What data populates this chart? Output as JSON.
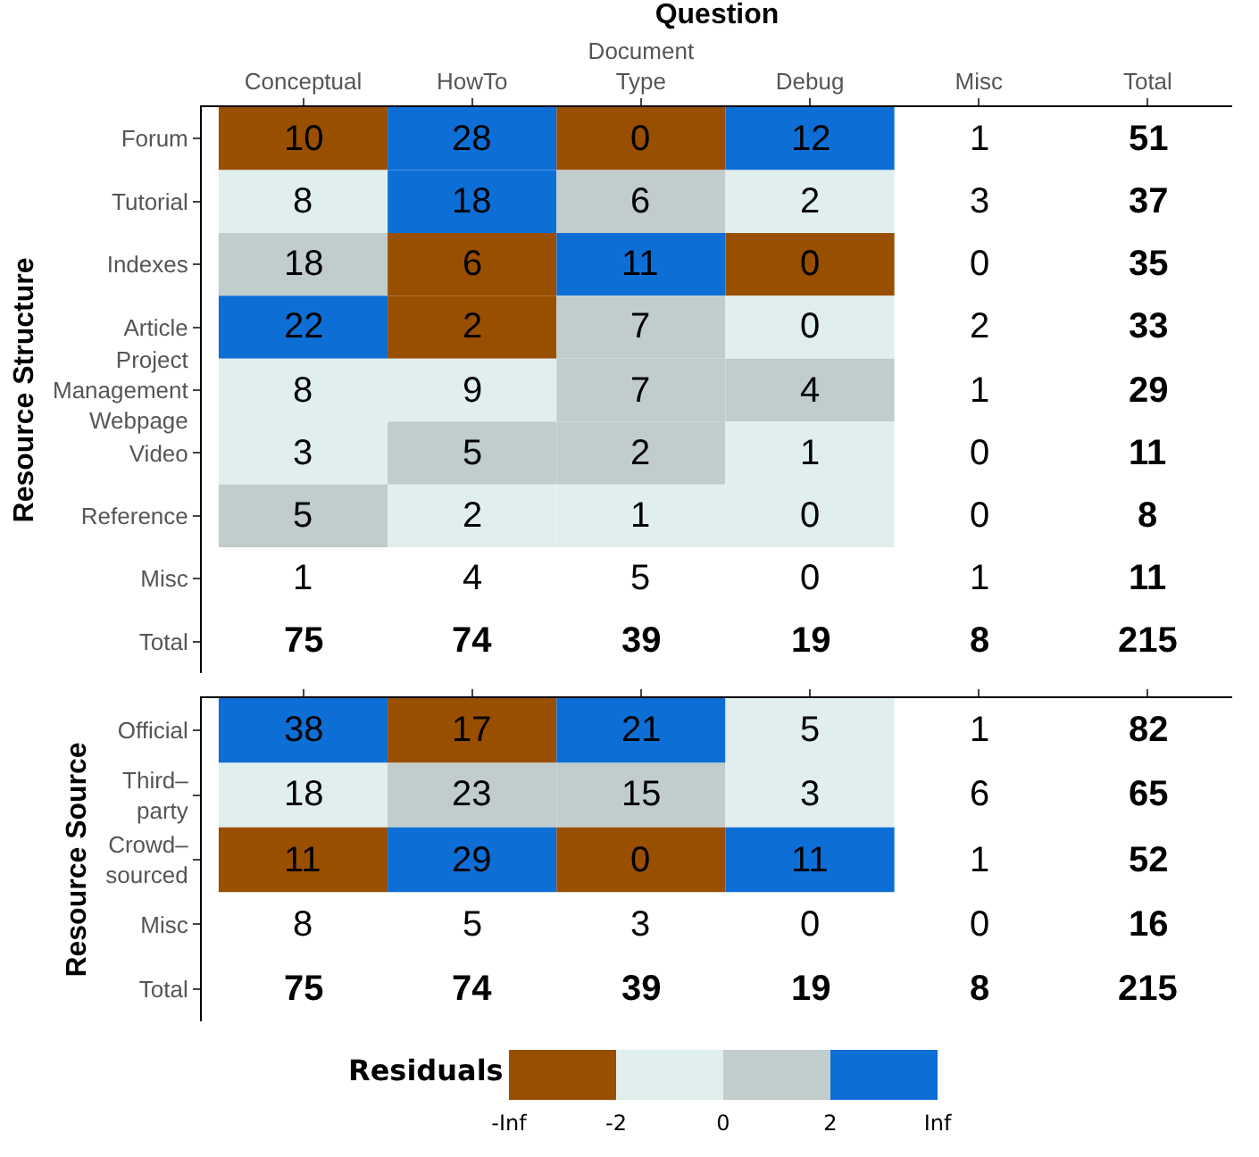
{
  "chart_data": [
    {
      "type": "heatmap",
      "xlabel": "Question",
      "ylabel": "Resource Structure",
      "data_labels": true,
      "categories": [
        "Conceptual",
        "HowTo",
        "Document Type",
        "Debug",
        "Misc",
        "Total"
      ],
      "y_categories": [
        "Forum",
        "Tutorial",
        "Indexes",
        "Article",
        "Project Management Webpage",
        "Video",
        "Reference",
        "Misc",
        "Total"
      ],
      "cells": [
        [
          10,
          28,
          0,
          12,
          1,
          51
        ],
        [
          8,
          18,
          6,
          2,
          3,
          37
        ],
        [
          18,
          6,
          11,
          0,
          0,
          35
        ],
        [
          22,
          2,
          7,
          0,
          2,
          33
        ],
        [
          8,
          9,
          7,
          4,
          1,
          29
        ],
        [
          3,
          5,
          2,
          1,
          0,
          11
        ],
        [
          5,
          2,
          1,
          0,
          0,
          8
        ],
        [
          1,
          4,
          5,
          0,
          1,
          11
        ],
        [
          75,
          74,
          39,
          19,
          8,
          215
        ]
      ],
      "colors": [
        [
          "#994f00",
          "#0d6ed6",
          "#994f00",
          "#0d6ed6",
          null,
          null
        ],
        [
          "#e1eeee",
          "#0d6ed6",
          "#c1cccc",
          "#e1eeee",
          null,
          null
        ],
        [
          "#c1cccc",
          "#994f00",
          "#0d6ed6",
          "#994f00",
          null,
          null
        ],
        [
          "#0d6ed6",
          "#994f00",
          "#c1cccc",
          "#e1eeee",
          null,
          null
        ],
        [
          "#e1eeee",
          "#e1eeee",
          "#c1cccc",
          "#c1cccc",
          null,
          null
        ],
        [
          "#e1eeee",
          "#c1cccc",
          "#c1cccc",
          "#e1eeee",
          null,
          null
        ],
        [
          "#c1cccc",
          "#e1eeee",
          "#e1eeee",
          "#e1eeee",
          null,
          null
        ],
        [
          null,
          null,
          null,
          null,
          null,
          null
        ],
        [
          null,
          null,
          null,
          null,
          null,
          null
        ]
      ]
    },
    {
      "type": "heatmap",
      "ylabel": "Resource Source",
      "tick_labels": "y",
      "data_labels": true,
      "categories": [
        null,
        null,
        null,
        null,
        null,
        null
      ],
      "y_categories": [
        "Official",
        "Third–party",
        "Crowd–sourced",
        "Misc",
        "Total"
      ],
      "cells": [
        [
          38,
          17,
          21,
          5,
          1,
          82
        ],
        [
          18,
          23,
          15,
          3,
          6,
          65
        ],
        [
          11,
          29,
          0,
          11,
          1,
          52
        ],
        [
          8,
          5,
          3,
          0,
          0,
          16
        ],
        [
          75,
          74,
          39,
          19,
          8,
          215
        ]
      ],
      "colors": [
        [
          "#0d6ed6",
          "#994f00",
          "#0d6ed6",
          "#e1eeee",
          null,
          null
        ],
        [
          "#e1eeee",
          "#c1cccc",
          "#c1cccc",
          "#e1eeee",
          null,
          null
        ],
        [
          "#994f00",
          "#0d6ed6",
          "#994f00",
          "#0d6ed6",
          null,
          null
        ],
        [
          null,
          null,
          null,
          null,
          null,
          null
        ],
        [
          null,
          null,
          null,
          null,
          null,
          null
        ]
      ]
    },
    {
      "type": "other",
      "title": "Residuals",
      "annotations": [
        "-Inf",
        "-2",
        "0",
        "2",
        "Inf"
      ],
      "colors": [
        "#994f00",
        "#e1eeee",
        "#c1cccc",
        "#0d6ed6"
      ]
    }
  ]
}
